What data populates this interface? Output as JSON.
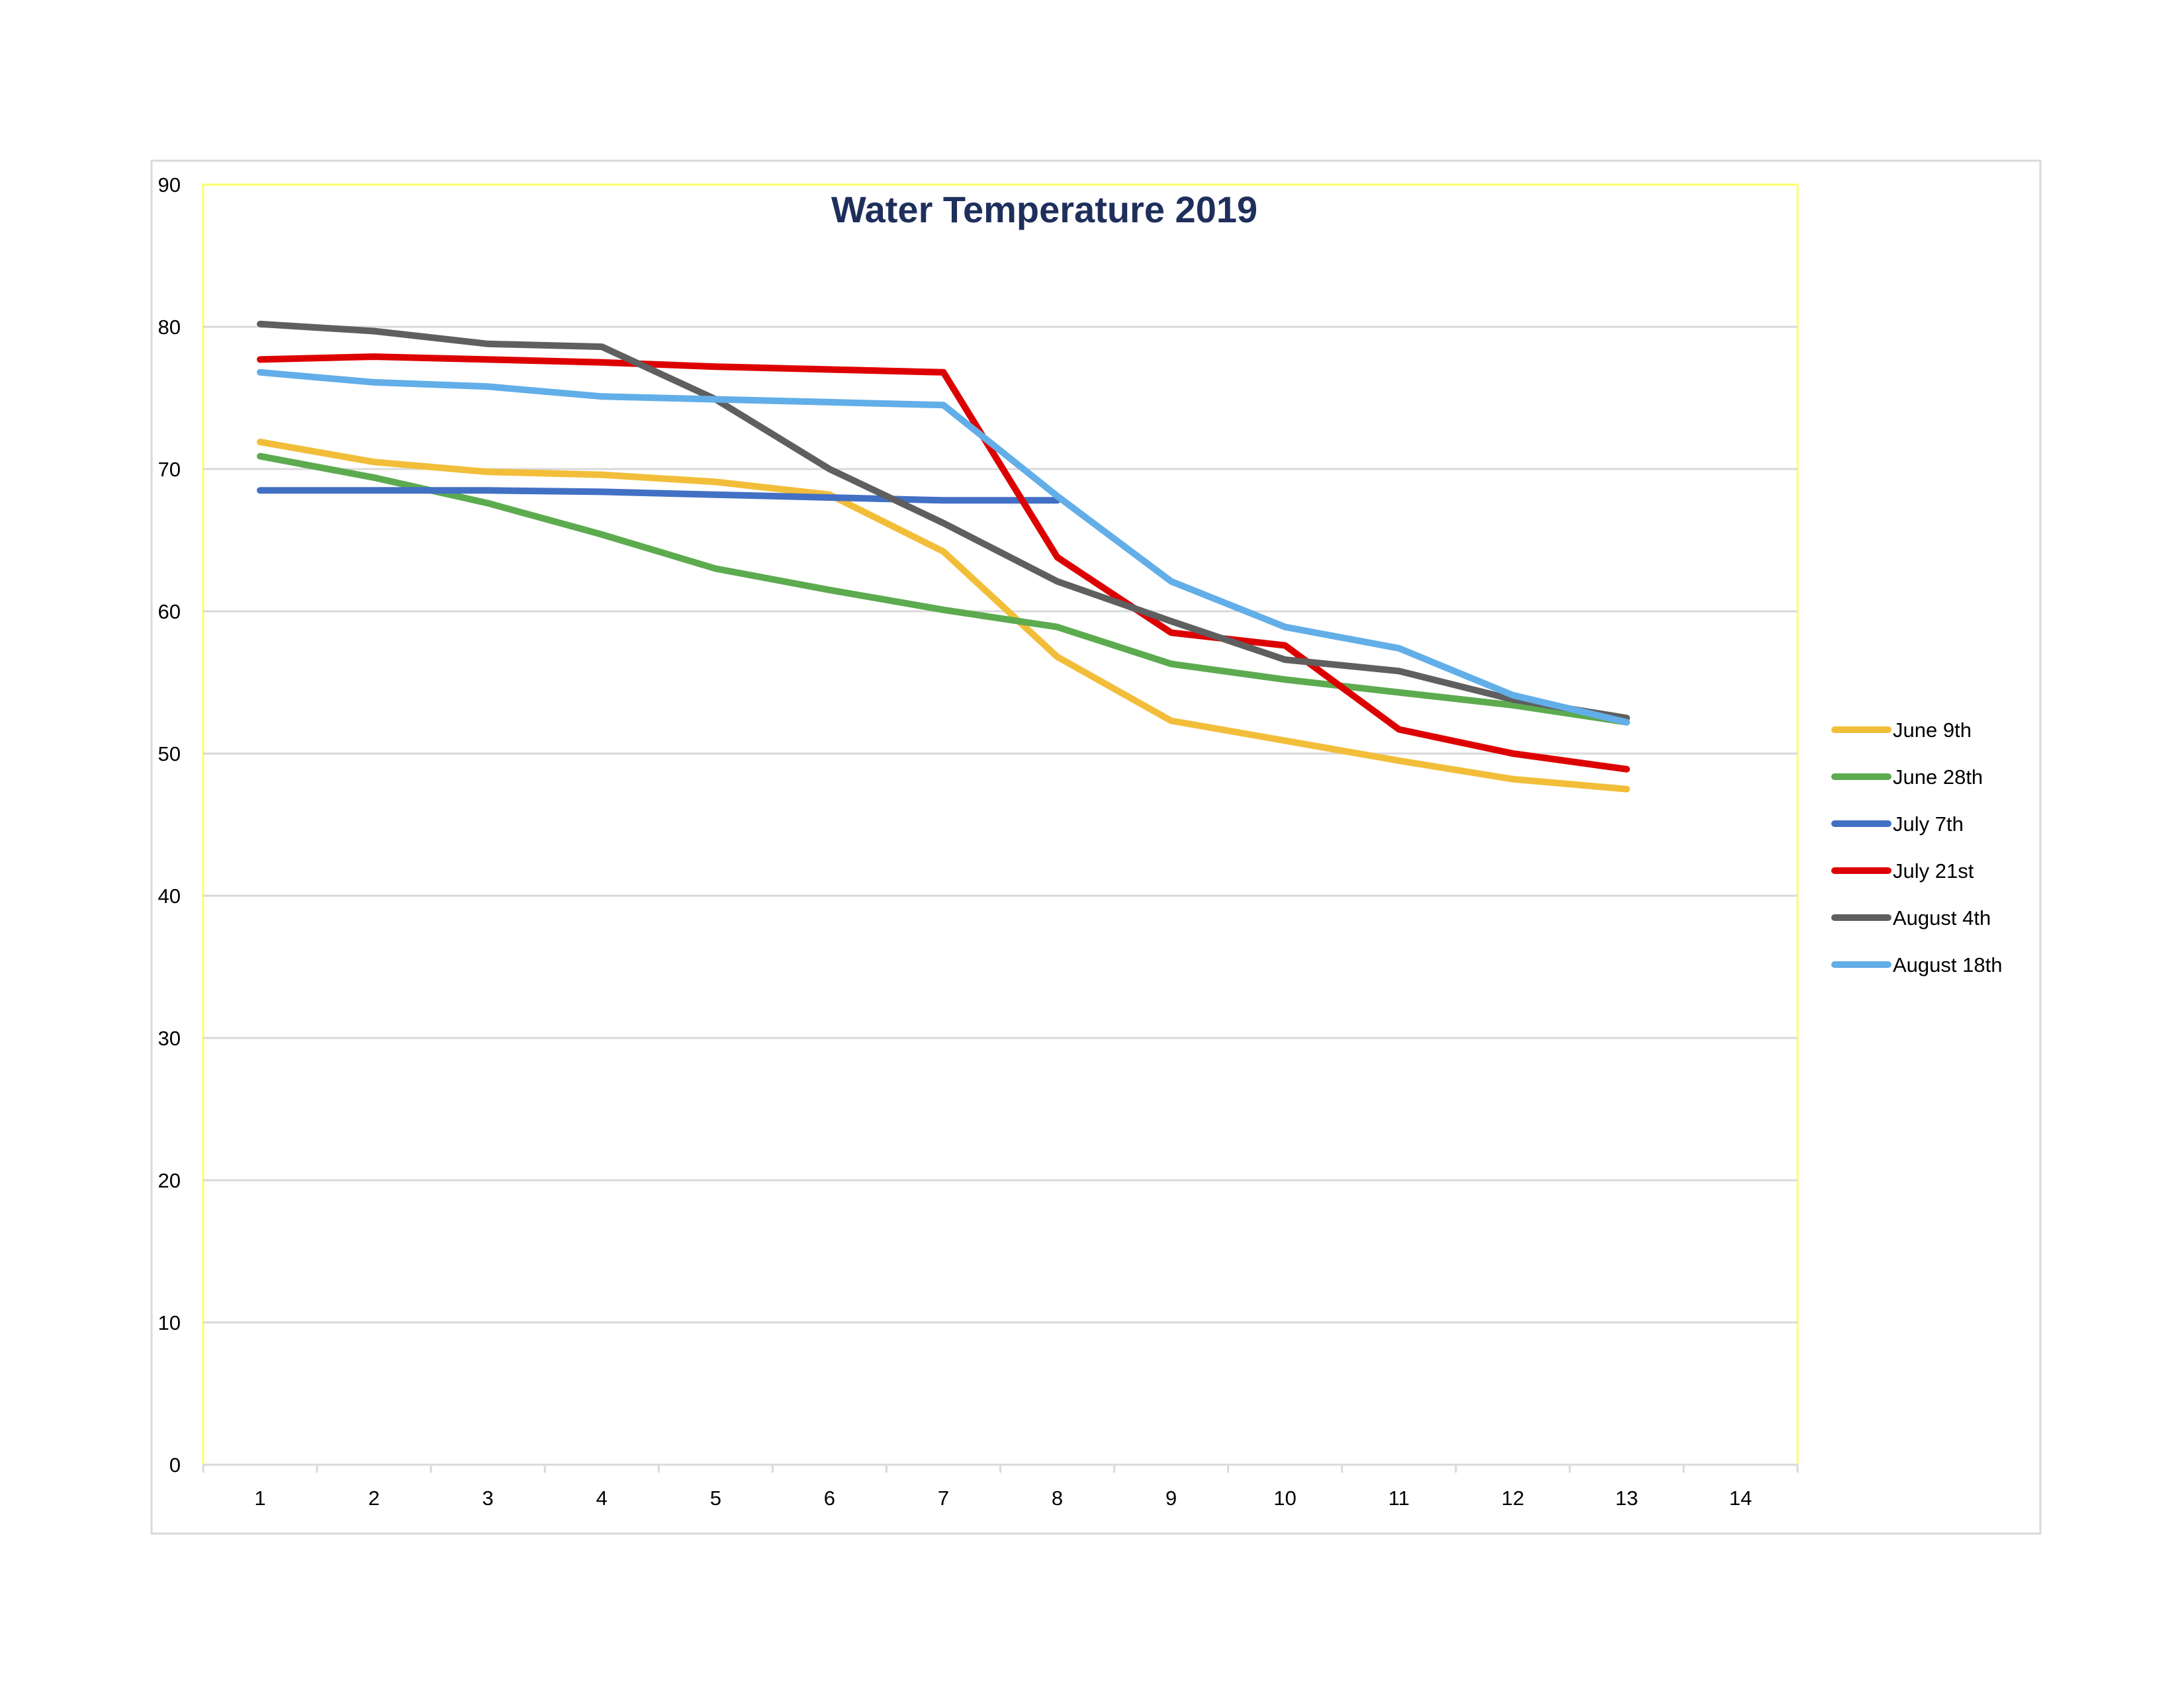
{
  "chart_data": {
    "type": "line",
    "title": "Water Temperature 2019",
    "xlabel": "",
    "ylabel": "",
    "xlim": [
      0.5,
      14.5
    ],
    "ylim": [
      0,
      90
    ],
    "x_ticks": [
      1,
      2,
      3,
      4,
      5,
      6,
      7,
      8,
      9,
      10,
      11,
      12,
      13,
      14
    ],
    "y_ticks": [
      0,
      10,
      20,
      30,
      40,
      50,
      60,
      70,
      80,
      90
    ],
    "grid": true,
    "legend_position": "right",
    "series": [
      {
        "name": "June 9th",
        "color": "#f2be3a",
        "x": [
          1,
          2,
          3,
          4,
          5,
          6,
          7,
          8,
          9,
          10,
          11,
          12,
          13
        ],
        "values": [
          71.9,
          70.5,
          69.8,
          69.6,
          69.1,
          68.2,
          64.2,
          56.8,
          52.3,
          50.9,
          49.5,
          48.2,
          47.5
        ]
      },
      {
        "name": "June 28th",
        "color": "#5cab4f",
        "x": [
          1,
          2,
          3,
          4,
          5,
          6,
          7,
          8,
          9,
          10,
          11,
          12,
          13
        ],
        "values": [
          70.9,
          69.4,
          67.6,
          65.4,
          63.0,
          61.5,
          60.1,
          58.9,
          56.3,
          55.2,
          54.3,
          53.4,
          52.2
        ]
      },
      {
        "name": "July 7th",
        "color": "#4270c4",
        "x": [
          1,
          2,
          3,
          4,
          5,
          6,
          7,
          8
        ],
        "values": [
          68.5,
          68.5,
          68.5,
          68.4,
          68.2,
          68.0,
          67.8,
          67.8
        ]
      },
      {
        "name": "July 21st",
        "color": "#dd0000",
        "x": [
          1,
          2,
          3,
          4,
          5,
          6,
          7,
          8,
          9,
          10,
          11,
          12,
          13
        ],
        "values": [
          77.7,
          77.9,
          77.7,
          77.5,
          77.2,
          77.0,
          76.8,
          63.8,
          58.5,
          57.6,
          51.7,
          50.0,
          48.9
        ]
      },
      {
        "name": "August 4th",
        "color": "#5f5f5f",
        "x": [
          1,
          2,
          3,
          4,
          5,
          6,
          7,
          8,
          9,
          10,
          11,
          12,
          13
        ],
        "values": [
          80.2,
          79.7,
          78.8,
          78.6,
          74.9,
          70.0,
          66.2,
          62.1,
          59.3,
          56.6,
          55.8,
          53.8,
          52.5
        ]
      },
      {
        "name": "August 18th",
        "color": "#62aee8",
        "x": [
          1,
          2,
          3,
          4,
          5,
          6,
          7,
          8,
          9,
          10,
          11,
          12,
          13
        ],
        "values": [
          76.8,
          76.1,
          75.8,
          75.1,
          74.9,
          74.7,
          74.5,
          68.1,
          62.1,
          58.9,
          57.4,
          54.1,
          52.2
        ]
      }
    ]
  }
}
